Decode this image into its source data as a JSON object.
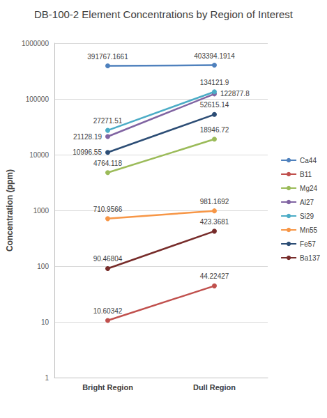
{
  "chart_data": {
    "type": "line",
    "title": "DB-100-2 Element Concentrations by Region of Interest",
    "y_label": "Concentration (ppm)",
    "categories": [
      "Bright Region",
      "Dull Region"
    ],
    "series": [
      {
        "name": "Ca44",
        "color": "#4f81bd",
        "values": [
          391767.1661,
          403394.1914
        ]
      },
      {
        "name": "B11",
        "color": "#c0504d",
        "values": [
          10.60342,
          44.22427
        ]
      },
      {
        "name": "Mg24",
        "color": "#9bbb59",
        "values": [
          4764.118,
          18946.72
        ]
      },
      {
        "name": "Al27",
        "color": "#8064a2",
        "values": [
          21128.19,
          122877.8
        ]
      },
      {
        "name": "Si29",
        "color": "#4bacc6",
        "values": [
          27271.51,
          134121.9
        ]
      },
      {
        "name": "Mn55",
        "color": "#f79646",
        "values": [
          710.9566,
          981.1692
        ]
      },
      {
        "name": "Fe57",
        "color": "#2c4d75",
        "values": [
          10996.55,
          52615.14
        ]
      },
      {
        "name": "Ba137",
        "color": "#772c2a",
        "values": [
          90.46804,
          423.3681
        ]
      }
    ],
    "ylim": [
      1,
      1000000
    ],
    "yticks": [
      1,
      10,
      100,
      1000,
      10000,
      100000,
      1000000
    ],
    "log": "y",
    "grid": true,
    "legend": "right",
    "data_labels": true,
    "marker": "circle"
  }
}
